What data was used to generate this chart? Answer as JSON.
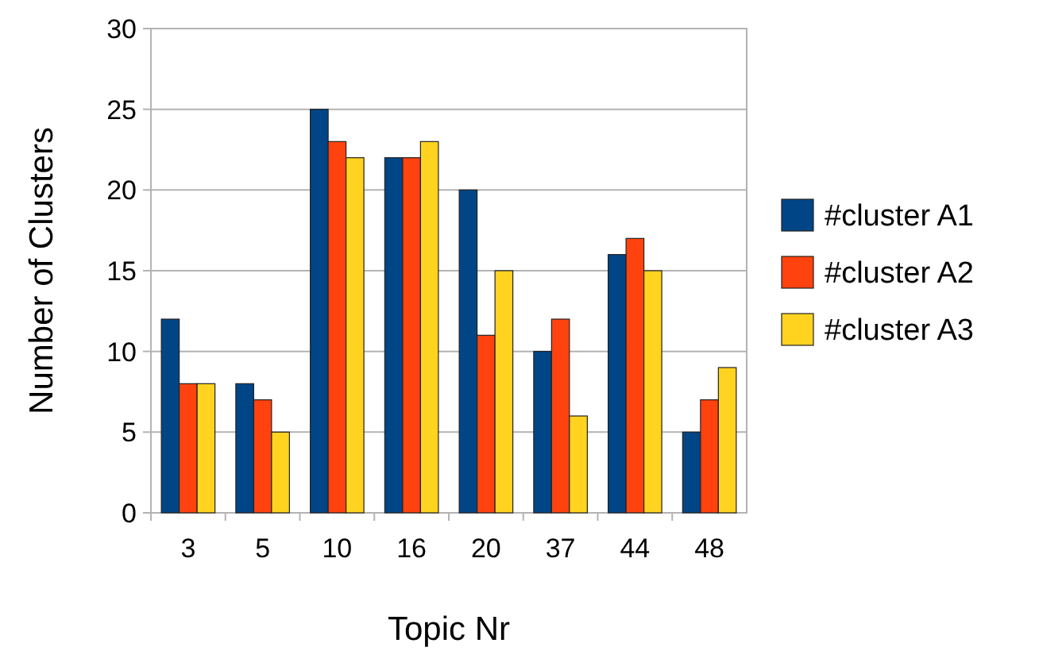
{
  "chart_data": {
    "type": "bar",
    "xlabel": "Topic Nr",
    "ylabel": "Number of Clusters",
    "categories": [
      "3",
      "5",
      "10",
      "16",
      "20",
      "37",
      "44",
      "48"
    ],
    "series": [
      {
        "name": "#cluster A1",
        "color": "#004586",
        "values": [
          12,
          8,
          25,
          22,
          20,
          10,
          16,
          5
        ]
      },
      {
        "name": "#cluster A2",
        "color": "#ff420e",
        "values": [
          8,
          7,
          23,
          22,
          11,
          12,
          17,
          7
        ]
      },
      {
        "name": "#cluster A3",
        "color": "#ffd320",
        "values": [
          8,
          5,
          22,
          23,
          15,
          6,
          15,
          9
        ]
      }
    ],
    "ylim": [
      0,
      30
    ],
    "yticks": [
      0,
      5,
      10,
      15,
      20,
      25,
      30
    ],
    "grid": "y",
    "legend": "right"
  }
}
